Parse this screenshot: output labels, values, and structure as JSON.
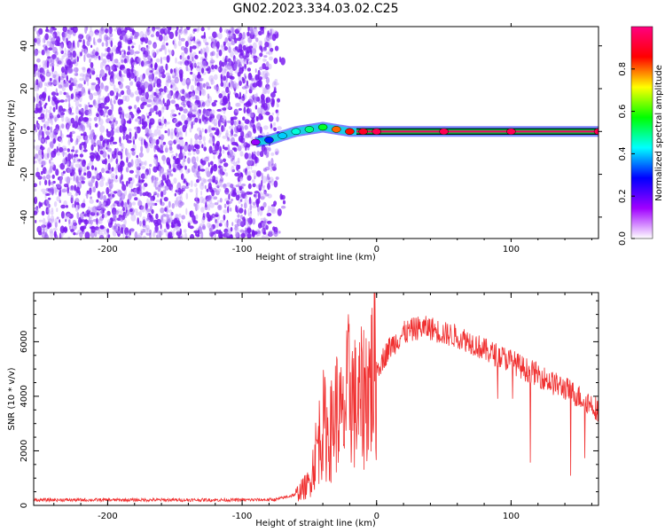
{
  "title": "GN02.2023.334.03.02.C25",
  "colors": {
    "snr_line": "#f03030",
    "spectrum_point": "#7a1cf0",
    "trace_core": "#e01060",
    "trace_edge": "#00dd44"
  },
  "chart_data": [
    {
      "type": "heatmap",
      "title": "GN02.2023.334.03.02.C25",
      "xlabel": "Height of straight line (km)",
      "ylabel": "Frequency (Hz)",
      "xlim": [
        -255,
        165
      ],
      "ylim": [
        -50,
        49
      ],
      "xticks": [
        -200,
        -100,
        0,
        100
      ],
      "yticks": [
        -40,
        -20,
        0,
        20,
        40
      ],
      "colorbar": {
        "label": "Normalized spectral amplitude",
        "range": [
          0,
          1
        ],
        "ticks": [
          0.0,
          0.2,
          0.4,
          0.6,
          0.8
        ],
        "colormap": [
          "#ffffff",
          "#a000ff",
          "#0000ff",
          "#00ffff",
          "#00ff00",
          "#ffff00",
          "#ff0000",
          "#ff0080"
        ]
      },
      "noise_region": {
        "x_range": [
          -255,
          -75
        ],
        "freq_range": [
          -50,
          49
        ],
        "amplitude_range": [
          0.0,
          0.12
        ]
      },
      "trace": {
        "x": [
          -90,
          -80,
          -70,
          -60,
          -50,
          -40,
          -30,
          -20,
          -10,
          0,
          50,
          100,
          165
        ],
        "freq": [
          -5,
          -4,
          -2,
          0,
          1,
          2,
          1,
          0,
          0,
          0,
          0,
          0,
          0
        ],
        "amplitude": [
          0.15,
          0.3,
          0.4,
          0.45,
          0.5,
          0.55,
          0.8,
          0.85,
          0.9,
          0.95,
          0.95,
          0.95,
          0.95
        ]
      },
      "grid": false,
      "legend": "right"
    },
    {
      "type": "line",
      "xlabel": "Height of straight line (km)",
      "ylabel": "SNR (10 * v/v)",
      "xlim": [
        -255,
        165
      ],
      "ylim": [
        0,
        7800
      ],
      "xticks": [
        -200,
        -100,
        0,
        100
      ],
      "yticks": [
        0,
        2000,
        4000,
        6000
      ],
      "grid": false,
      "series": [
        {
          "x": [
            -255,
            -200,
            -150,
            -100,
            -75,
            -60,
            -50,
            -45,
            -40,
            -35,
            -30,
            -25,
            -20,
            -15,
            -10,
            -5,
            0,
            10,
            20,
            30,
            40,
            50,
            60,
            70,
            80,
            90,
            100,
            110,
            120,
            130,
            140,
            150,
            160,
            165
          ],
          "values": [
            200,
            200,
            200,
            200,
            210,
            400,
            800,
            2000,
            3000,
            2500,
            3500,
            3000,
            4500,
            3500,
            4000,
            4500,
            5000,
            5800,
            6300,
            6500,
            6500,
            6300,
            6200,
            6000,
            5700,
            5500,
            5300,
            5000,
            4800,
            4500,
            4300,
            4000,
            3700,
            3500
          ]
        }
      ]
    }
  ]
}
